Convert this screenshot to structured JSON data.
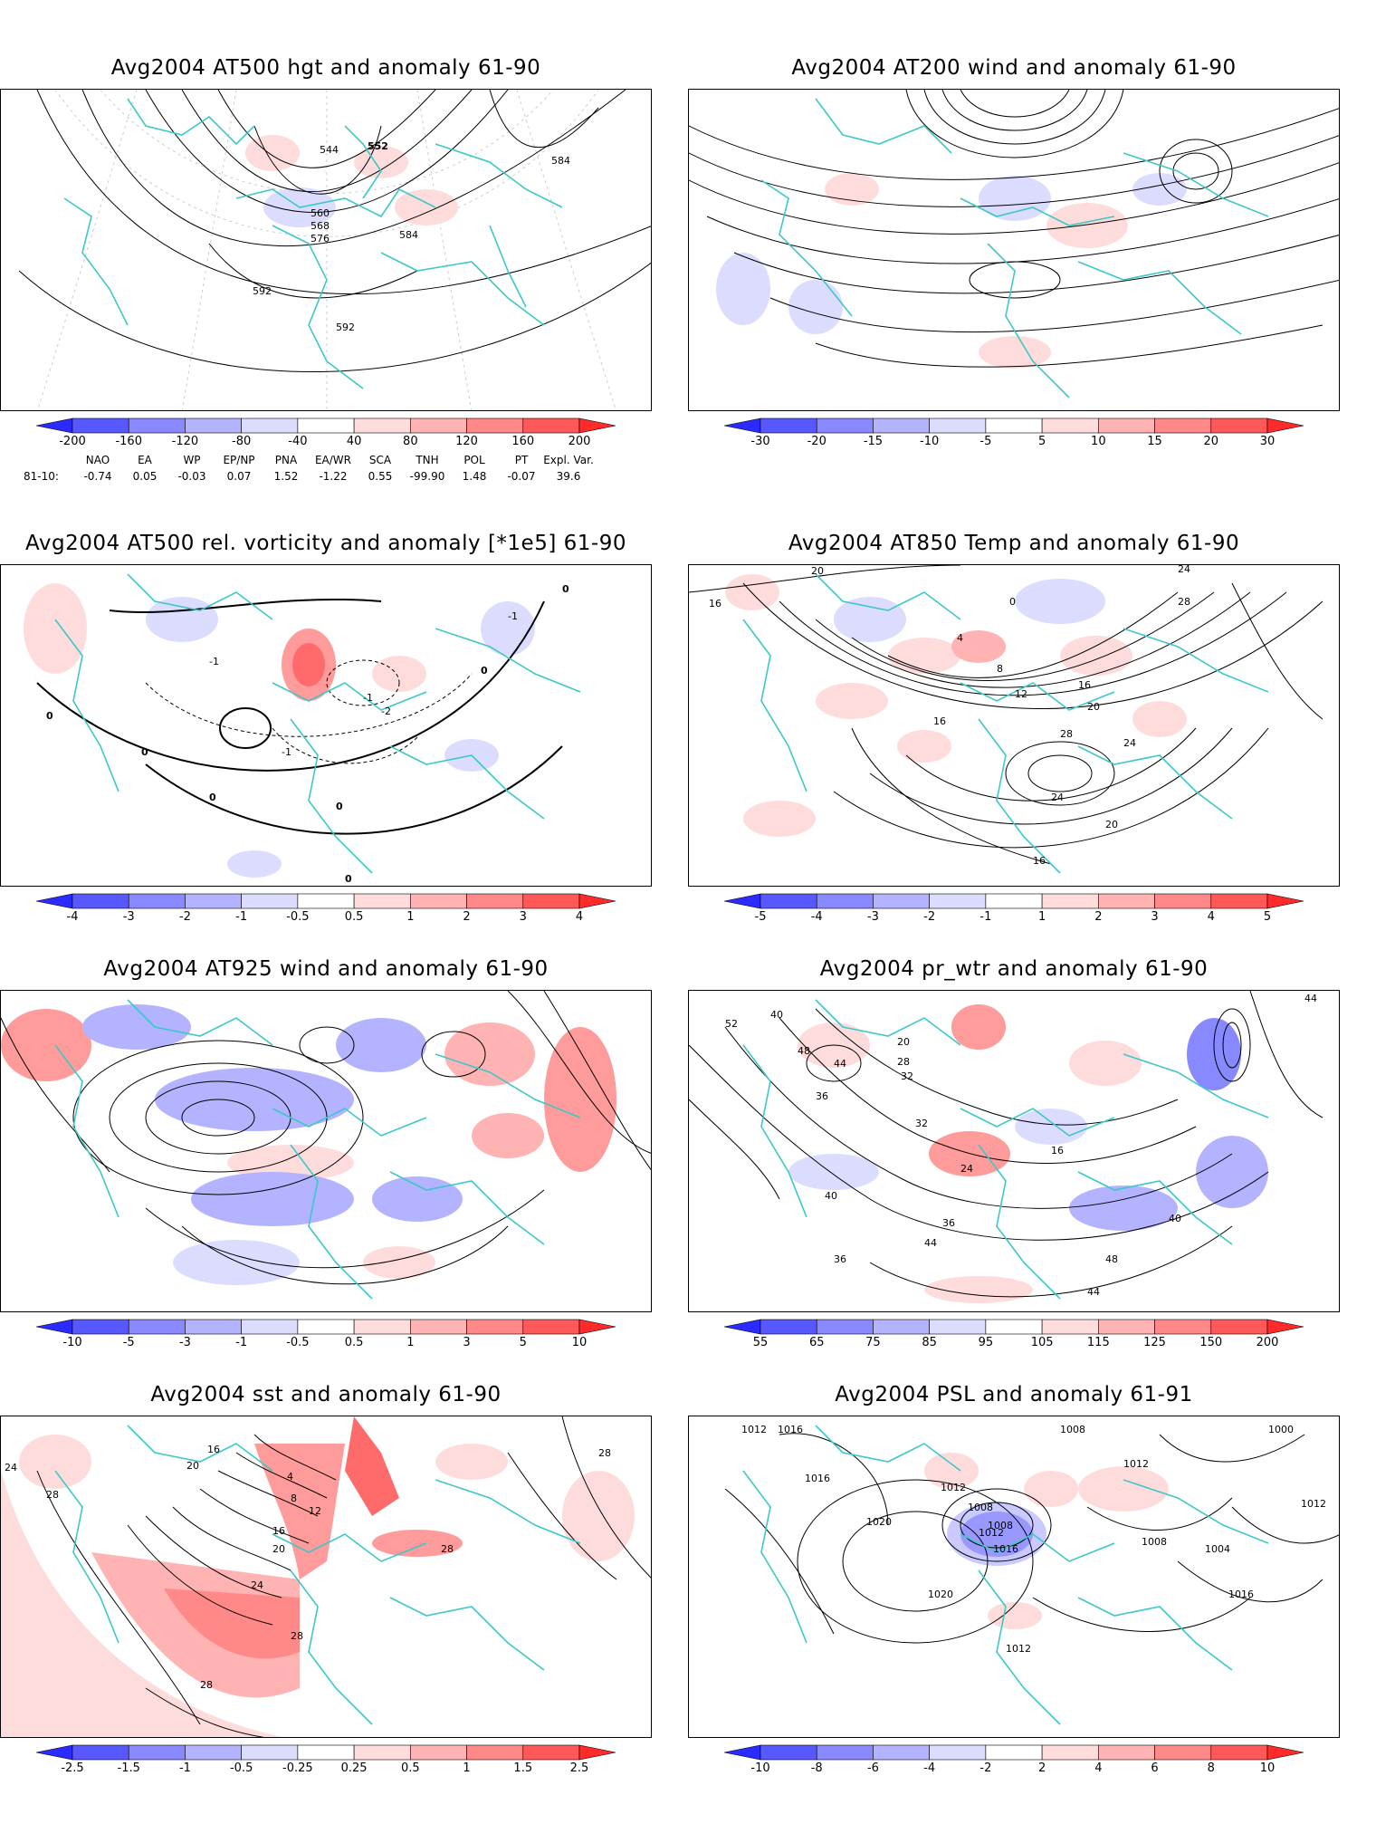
{
  "panels": [
    {
      "id": "p1",
      "title": "Avg2004 AT500 hgt and anomaly 61-90",
      "colorbar": {
        "labels": [
          "-200",
          "-160",
          "-120",
          "-80",
          "-40",
          "40",
          "80",
          "120",
          "160",
          "200"
        ],
        "colors": [
          "#2b2bff",
          "#5858ff",
          "#8989ff",
          "#b3b3ff",
          "#dcdcff",
          "#ffffff",
          "#ffdcdc",
          "#ffb3b3",
          "#ff8989",
          "#ff5858",
          "#ff2b2b"
        ]
      },
      "contour_labels": [
        "544",
        "552",
        "584",
        "560",
        "568",
        "576",
        "584",
        "592",
        "592"
      ],
      "teleconnections": {
        "names": [
          "NAO",
          "EA",
          "WP",
          "EP/NP",
          "PNA",
          "EA/WR",
          "SCA",
          "TNH",
          "POL",
          "PT",
          "Expl. Var."
        ],
        "period": "81-10:",
        "values": [
          "-0.74",
          "0.05",
          "-0.03",
          "0.07",
          "1.52",
          "-1.22",
          "0.55",
          "-99.90",
          "1.48",
          "-0.07",
          "39.6"
        ]
      }
    },
    {
      "id": "p2",
      "title": "Avg2004 AT200 wind and anomaly 61-90",
      "colorbar": {
        "labels": [
          "-30",
          "-20",
          "-15",
          "-10",
          "-5",
          "5",
          "10",
          "15",
          "20",
          "30"
        ],
        "colors": [
          "#2b2bff",
          "#5858ff",
          "#8989ff",
          "#b3b3ff",
          "#dcdcff",
          "#ffffff",
          "#ffdcdc",
          "#ffb3b3",
          "#ff8989",
          "#ff5858",
          "#ff2b2b"
        ]
      },
      "contour_labels": []
    },
    {
      "id": "p3",
      "title": "Avg2004 AT500 rel. vorticity and anomaly [*1e5] 61-90",
      "colorbar": {
        "labels": [
          "-4",
          "-3",
          "-2",
          "-1",
          "-0.5",
          "0.5",
          "1",
          "2",
          "3",
          "4"
        ],
        "colors": [
          "#2b2bff",
          "#5858ff",
          "#8989ff",
          "#b3b3ff",
          "#dcdcff",
          "#ffffff",
          "#ffdcdc",
          "#ffb3b3",
          "#ff8989",
          "#ff5858",
          "#ff2b2b"
        ]
      },
      "contour_labels": [
        "0",
        "0",
        "0",
        "0",
        "-1",
        "-1",
        "-1",
        "-2",
        "-1",
        "0",
        "0",
        "0"
      ]
    },
    {
      "id": "p4",
      "title": "Avg2004 AT850 Temp and anomaly 61-90",
      "colorbar": {
        "labels": [
          "-5",
          "-4",
          "-3",
          "-2",
          "-1",
          "1",
          "2",
          "3",
          "4",
          "5"
        ],
        "colors": [
          "#2b2bff",
          "#5858ff",
          "#8989ff",
          "#b3b3ff",
          "#dcdcff",
          "#ffffff",
          "#ffdcdc",
          "#ffb3b3",
          "#ff8989",
          "#ff5858",
          "#ff2b2b"
        ]
      },
      "contour_labels": [
        "20",
        "16",
        "24",
        "28",
        "0",
        "4",
        "8",
        "12",
        "16",
        "20",
        "24",
        "28",
        "16",
        "24",
        "20",
        "16"
      ]
    },
    {
      "id": "p5",
      "title": "Avg2004 AT925 wind and anomaly 61-90",
      "colorbar": {
        "labels": [
          "-10",
          "-5",
          "-3",
          "-1",
          "-0.5",
          "0.5",
          "1",
          "3",
          "5",
          "10"
        ],
        "colors": [
          "#2b2bff",
          "#5858ff",
          "#8989ff",
          "#b3b3ff",
          "#dcdcff",
          "#ffffff",
          "#ffdcdc",
          "#ffb3b3",
          "#ff8989",
          "#ff5858",
          "#ff2b2b"
        ]
      },
      "contour_labels": []
    },
    {
      "id": "p6",
      "title": "Avg2004 pr_wtr and anomaly 61-90",
      "colorbar": {
        "labels": [
          "55",
          "65",
          "75",
          "85",
          "95",
          "105",
          "115",
          "125",
          "150",
          "200"
        ],
        "colors": [
          "#2b2bff",
          "#5858ff",
          "#8989ff",
          "#b3b3ff",
          "#dcdcff",
          "#ffffff",
          "#ffdcdc",
          "#ffb3b3",
          "#ff8989",
          "#ff5858",
          "#ff2b2b"
        ]
      },
      "contour_labels": [
        "52",
        "44",
        "40",
        "48",
        "44",
        "20",
        "28",
        "32",
        "36",
        "32",
        "24",
        "16",
        "36",
        "40",
        "44",
        "48",
        "44",
        "40",
        "36"
      ]
    },
    {
      "id": "p7",
      "title": "Avg2004 sst and anomaly 61-90",
      "colorbar": {
        "labels": [
          "-2.5",
          "-1.5",
          "-1",
          "-0.5",
          "-0.25",
          "0.25",
          "0.5",
          "1",
          "1.5",
          "2.5"
        ],
        "colors": [
          "#2b2bff",
          "#5858ff",
          "#8989ff",
          "#b3b3ff",
          "#dcdcff",
          "#ffffff",
          "#ffdcdc",
          "#ffb3b3",
          "#ff8989",
          "#ff5858",
          "#ff2b2b"
        ]
      },
      "contour_labels": [
        "24",
        "28",
        "28",
        "20",
        "16",
        "12",
        "8",
        "4",
        "16",
        "20",
        "24",
        "28",
        "28",
        "28"
      ]
    },
    {
      "id": "p8",
      "title": "Avg2004 PSL and anomaly 61-91",
      "colorbar": {
        "labels": [
          "-10",
          "-8",
          "-6",
          "-4",
          "-2",
          "2",
          "4",
          "6",
          "8",
          "10"
        ],
        "colors": [
          "#2b2bff",
          "#5858ff",
          "#8989ff",
          "#b3b3ff",
          "#dcdcff",
          "#ffffff",
          "#ffdcdc",
          "#ffb3b3",
          "#ff8989",
          "#ff5858",
          "#ff2b2b"
        ]
      },
      "contour_labels": [
        "1012",
        "1016",
        "1008",
        "1000",
        "1016",
        "1020",
        "1012",
        "1008",
        "1012",
        "1008",
        "1016",
        "1020",
        "1012",
        "1008",
        "1004",
        "1012",
        "1016",
        "1012"
      ]
    }
  ]
}
